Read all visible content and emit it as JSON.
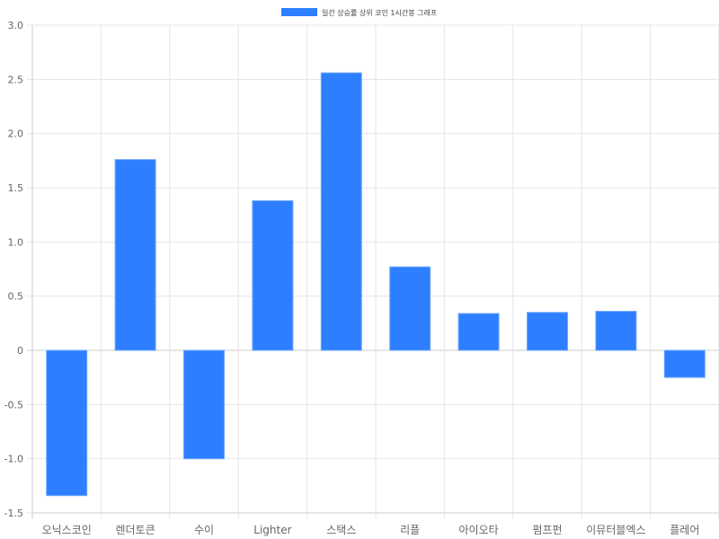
{
  "chart_data": {
    "type": "bar",
    "categories": [
      "오닉스코인",
      "렌더토큰",
      "수이",
      "Lighter",
      "스택스",
      "리플",
      "아이오타",
      "펌프펀",
      "이뮤터블엑스",
      "플레어"
    ],
    "series": [
      {
        "name": "일간 상승률 상위 코인 1시간봉 그래프",
        "values": [
          -1.34,
          1.76,
          -1.0,
          1.38,
          2.56,
          0.77,
          0.34,
          0.35,
          0.36,
          -0.25
        ]
      }
    ],
    "ylim": [
      -1.5,
      3.0
    ],
    "yticks": [
      "3.0",
      "2.5",
      "2.0",
      "1.5",
      "1.0",
      "0.5",
      "0",
      "-0.5",
      "-1.0",
      "-1.5"
    ],
    "grid": true,
    "legend": "top",
    "colors": {
      "bar": "#2e7fff",
      "bar_border": "#6fa7ff"
    }
  }
}
